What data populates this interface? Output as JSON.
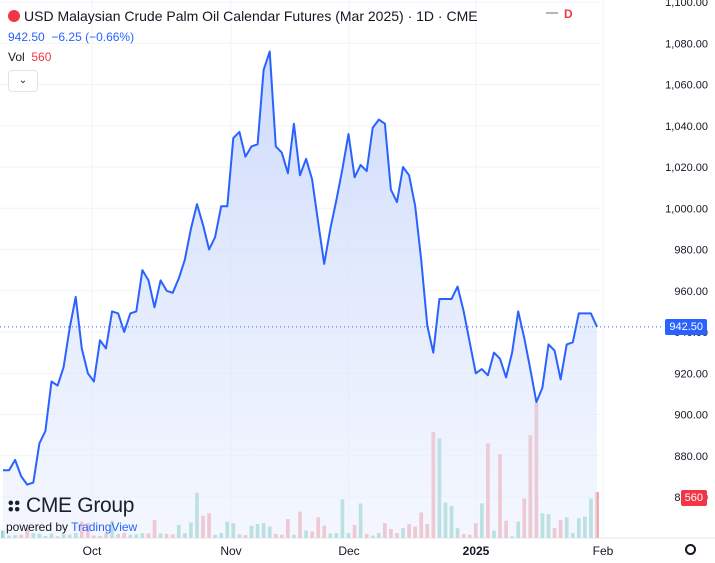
{
  "header": {
    "title": "USD Malaysian Crude Palm Oil Calendar Futures (Mar 2025) · 1D · CME",
    "price": "942.50",
    "change": "−6.25 (−0.66%)",
    "vol_label": "Vol",
    "vol_value": "560",
    "d_mark": "D"
  },
  "brand": {
    "name": "CME Group",
    "powered_by": "powered by",
    "tv_name": "TradingView"
  },
  "colors": {
    "line": "#2962ff",
    "fill_top": "#c8d6fb",
    "vol_up": "#8fd1c6",
    "vol_down": "#f2a3a7",
    "vol_tag": "#f23645",
    "price_tag": "#2962ff"
  },
  "chart_data": {
    "type": "area",
    "x_tick_labels": [
      "Oct",
      "Nov",
      "Dec",
      "2025",
      "Feb"
    ],
    "y_tick_labels": [
      "860.00",
      "880.00",
      "900.00",
      "920.00",
      "940.00",
      "960.00",
      "980.00",
      "1,000.00",
      "1,020.00",
      "1,040.00",
      "1,060.00",
      "1,080.00",
      "1,100.00"
    ],
    "ylim": [
      860,
      1100
    ],
    "last_price_label": "942.50",
    "last_volume_label": "560",
    "series": [
      {
        "values": [
          873,
          873,
          878,
          870,
          866,
          867,
          886,
          892,
          916,
          914,
          923,
          942,
          957,
          932,
          920,
          916,
          936,
          932,
          950,
          949,
          940,
          949,
          950,
          970,
          965,
          952,
          965,
          960,
          959,
          966,
          975,
          990,
          1002,
          992,
          980,
          986,
          1001,
          1001,
          1034,
          1037,
          1025,
          1030,
          1031,
          1067,
          1076,
          1030,
          1027,
          1017,
          1041,
          1016,
          1024,
          1014,
          993,
          973,
          990,
          1004,
          1019,
          1036,
          1015,
          1021,
          1018,
          1039,
          1043,
          1041,
          1009,
          1003,
          1020,
          1016,
          1001,
          975,
          943,
          930,
          956,
          956,
          956,
          962,
          950,
          935,
          920,
          922,
          919,
          930,
          927,
          918,
          930,
          950,
          937,
          922,
          906,
          913,
          934,
          931,
          917,
          934,
          935,
          949,
          949,
          949,
          942.5
        ]
      },
      {
        "name": "Vol",
        "values": [
          90,
          30,
          35,
          40,
          120,
          60,
          50,
          25,
          55,
          20,
          45,
          40,
          60,
          200,
          180,
          30,
          25,
          55,
          210,
          50,
          60,
          40,
          45,
          60,
          55,
          220,
          55,
          50,
          45,
          160,
          60,
          190,
          550,
          270,
          300,
          40,
          60,
          200,
          180,
          45,
          35,
          150,
          170,
          180,
          140,
          50,
          40,
          230,
          40,
          320,
          90,
          80,
          250,
          150,
          55,
          60,
          470,
          60,
          160,
          420,
          50,
          30,
          60,
          180,
          110,
          60,
          120,
          170,
          140,
          310,
          170,
          1290,
          1210,
          430,
          390,
          120,
          50,
          40,
          180,
          420,
          1150,
          90,
          1020,
          210,
          20,
          200,
          480,
          1250,
          1640,
          300,
          290,
          120,
          220,
          250,
          60,
          240,
          260,
          480,
          560
        ]
      }
    ]
  }
}
